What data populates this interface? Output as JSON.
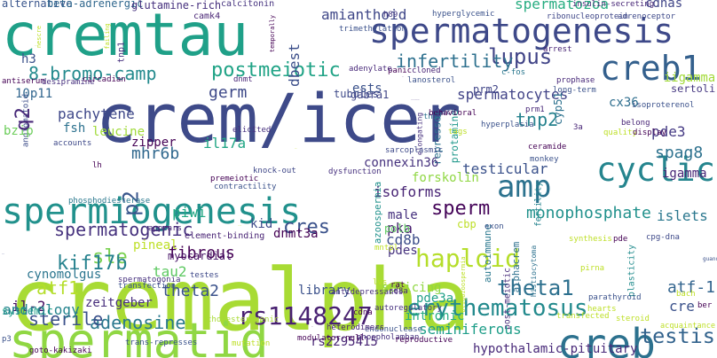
{
  "words": [
    {
      "text": "cremalpha",
      "color": "#a8db34"
    },
    {
      "text": "crem/icer",
      "color": "#3e4a89"
    },
    {
      "text": "cremtau",
      "color": "#1fa088"
    },
    {
      "text": "spermatid",
      "color": "#90d743"
    },
    {
      "text": "spermiogenesis",
      "color": "#21918c"
    },
    {
      "text": "spermatogenesis",
      "color": "#3e4989"
    },
    {
      "text": "creb",
      "color": "#2c718e"
    },
    {
      "text": "creb1",
      "color": "#34608d"
    },
    {
      "text": "cyclic",
      "color": "#25858e"
    },
    {
      "text": "amp",
      "color": "#2c728e"
    },
    {
      "text": "8-bromo-camp",
      "color": "#238a8d"
    },
    {
      "text": "postmeiotic",
      "color": "#20a386"
    },
    {
      "text": "lupus",
      "color": "#414487"
    },
    {
      "text": "infertility",
      "color": "#2d708e"
    },
    {
      "text": "spermatozoa",
      "color": "#27ad81"
    },
    {
      "text": "spermatocytes",
      "color": "#414387"
    },
    {
      "text": "amianthoid",
      "color": "#3f4788"
    },
    {
      "text": "haploid",
      "color": "#b5de2b"
    },
    {
      "text": "theta1",
      "color": "#2d708e"
    },
    {
      "text": "atf-1",
      "color": "#32648e"
    },
    {
      "text": "erythematosus",
      "color": "#238a8d"
    },
    {
      "text": "testis",
      "color": "#33638d"
    },
    {
      "text": "rs1148247",
      "color": "#482071"
    },
    {
      "text": "rs2295415",
      "color": "#482575"
    },
    {
      "text": "adenosine",
      "color": "#2a788e"
    },
    {
      "text": "sterile",
      "color": "#3b518b"
    },
    {
      "text": "spermatogenic",
      "color": "#46327e"
    },
    {
      "text": "sperm",
      "color": "#450559"
    },
    {
      "text": "cres",
      "color": "#3b528b"
    },
    {
      "text": "kid",
      "color": "#3e4c8a"
    },
    {
      "text": "sle",
      "color": "#7ad151"
    },
    {
      "text": "kif17b",
      "color": "#26828e"
    },
    {
      "text": "atf1",
      "color": "#b5de2b"
    },
    {
      "text": "tau2",
      "color": "#5ec962"
    },
    {
      "text": "theta2",
      "color": "#3b528b"
    },
    {
      "text": "il-2",
      "color": "#471063"
    },
    {
      "text": "fibrous",
      "color": "#440154"
    },
    {
      "text": "protamine",
      "color": "#1f988b"
    },
    {
      "text": "repressor",
      "color": "#2c738e"
    },
    {
      "text": "elongating",
      "color": "#46307e"
    },
    {
      "text": "tnp2",
      "color": "#26828e"
    },
    {
      "text": "cyp51",
      "color": "#2c718e"
    },
    {
      "text": "fertility",
      "color": "#25838e"
    },
    {
      "text": "spag8",
      "color": "#2d718e"
    },
    {
      "text": "igamma",
      "color": "#482677"
    },
    {
      "text": "iigamma",
      "color": "#a2da37"
    },
    {
      "text": "pde3",
      "color": "#443983"
    },
    {
      "text": "monophosphate",
      "color": "#21918c"
    },
    {
      "text": "connexin36",
      "color": "#46327e"
    },
    {
      "text": "testicular",
      "color": "#3b528b"
    },
    {
      "text": "isoforms",
      "color": "#482475"
    },
    {
      "text": "forskolin",
      "color": "#90d743"
    },
    {
      "text": "azoospermia",
      "color": "#21918c"
    },
    {
      "text": "histiocytoma",
      "color": "#2c718e"
    },
    {
      "text": "alphacrem",
      "color": "#2d708e"
    },
    {
      "text": "post-meiotic",
      "color": "#472d7b"
    },
    {
      "text": "plasticity",
      "color": "#228c8d"
    },
    {
      "text": "islets",
      "color": "#2a778e"
    },
    {
      "text": "cre",
      "color": "#3b528b"
    },
    {
      "text": "acquaintance",
      "color": "#bddf26"
    },
    {
      "text": "cd8b",
      "color": "#3d4e8a"
    },
    {
      "text": "pde3a",
      "color": "#1fa088"
    },
    {
      "text": "cbp",
      "color": "#bddf26"
    },
    {
      "text": "oligozoospermia",
      "color": "#bddf26"
    },
    {
      "text": "autoimmune",
      "color": "#2a788e"
    },
    {
      "text": "intronic",
      "color": "#25ab82"
    },
    {
      "text": "seminiferous",
      "color": "#1f9e89"
    },
    {
      "text": "hypothalamic-pituitary",
      "color": "#482979"
    },
    {
      "text": "pka",
      "color": "#481f70"
    },
    {
      "text": "male",
      "color": "#46317e"
    },
    {
      "text": "pdes",
      "color": "#46327e"
    },
    {
      "text": "splicing",
      "color": "#90d743"
    },
    {
      "text": "library",
      "color": "#3b518b"
    },
    {
      "text": "pineal",
      "color": "#bddf26"
    },
    {
      "text": "zeitgeber",
      "color": "#472e7c"
    },
    {
      "text": "systemic",
      "color": "#1fa188"
    },
    {
      "text": "andrology",
      "color": "#25848e"
    },
    {
      "text": "cynomolgus",
      "color": "#2b758e"
    },
    {
      "text": "piwi",
      "color": "#22a884"
    },
    {
      "text": "zipper",
      "color": "#440154"
    },
    {
      "text": "mhr6b",
      "color": "#30688e"
    },
    {
      "text": "il17a",
      "color": "#21a685"
    },
    {
      "text": "germ",
      "color": "#3e4989"
    },
    {
      "text": "pachytene",
      "color": "#3f4889"
    },
    {
      "text": "angiomatoid",
      "color": "#3d4d8a"
    },
    {
      "text": "p2",
      "color": "#39568c"
    },
    {
      "text": "bzip",
      "color": "#6ccd5a"
    },
    {
      "text": "leucine",
      "color": "#a0da39"
    },
    {
      "text": "fsh",
      "color": "#2c718e"
    },
    {
      "text": "q2",
      "color": "#482979"
    },
    {
      "text": "10p11",
      "color": "#31668e"
    },
    {
      "text": "h3",
      "color": "#3b528b"
    },
    {
      "text": "camk4",
      "color": "#482475"
    },
    {
      "text": "alternative",
      "color": "#39558c"
    },
    {
      "text": "beta-adrenergic",
      "color": "#31688e"
    },
    {
      "text": "glutamine-rich",
      "color": "#46307e"
    },
    {
      "text": "failure",
      "color": "#440154"
    },
    {
      "text": "dnmt3a",
      "color": "#440154"
    },
    {
      "text": "gabra1",
      "color": "#404588"
    },
    {
      "text": "ests",
      "color": "#3b528b"
    },
    {
      "text": "tubules",
      "color": "#3e4a89"
    },
    {
      "text": "cx36",
      "color": "#2e6e8e"
    },
    {
      "text": "cdnas",
      "color": "#404588"
    },
    {
      "text": "prm2",
      "color": "#404588"
    },
    {
      "text": "sertoli",
      "color": "#453781"
    },
    {
      "text": "dbest",
      "color": "#3c4f8a"
    },
    {
      "text": "tnp1",
      "color": "#46307e"
    },
    {
      "text": "polb",
      "color": "#5ec962"
    },
    {
      "text": "myocardial",
      "color": "#481467"
    },
    {
      "text": "element-binding",
      "color": "#482374"
    },
    {
      "text": "calcitonin",
      "color": "#46337f"
    },
    {
      "text": "h89",
      "color": "#453781"
    },
    {
      "text": "hyperglycemic",
      "color": "#3b528b"
    },
    {
      "text": "insulin-secreting",
      "color": "#482777"
    },
    {
      "text": "arrest",
      "color": "#482475"
    },
    {
      "text": "panic",
      "color": "#440154"
    },
    {
      "text": "cloned",
      "color": "#482576"
    },
    {
      "text": "trimethylation",
      "color": "#3b518b"
    },
    {
      "text": "ribonucleoprotein",
      "color": "#3f4788"
    },
    {
      "text": "adrenoceptor",
      "color": "#3e4989"
    },
    {
      "text": "myxoid",
      "color": "#a8db34"
    },
    {
      "text": "nescre",
      "color": "#bddf26"
    },
    {
      "text": "failing",
      "color": "#bddf26"
    },
    {
      "text": "temporally",
      "color": "#440154"
    },
    {
      "text": "adenylate",
      "color": "#482979"
    },
    {
      "text": "lanosterol",
      "color": "#3b528b"
    },
    {
      "text": "c-fos",
      "color": "#2a778e"
    },
    {
      "text": "prophase",
      "color": "#482979"
    },
    {
      "text": "dnmt",
      "color": "#482576"
    },
    {
      "text": "antiserum",
      "color": "#440154"
    },
    {
      "text": "desipramine",
      "color": "#46307e"
    },
    {
      "text": "circadian",
      "color": "#440154"
    },
    {
      "text": "retrotransposons",
      "color": "#46327e"
    },
    {
      "text": "tax",
      "color": "#482173"
    },
    {
      "text": "lack",
      "color": "#3b528b"
    },
    {
      "text": "th17",
      "color": "#2c728e"
    },
    {
      "text": "behavioral",
      "color": "#440154"
    },
    {
      "text": "anxiety",
      "color": "#46307e"
    },
    {
      "text": "tags",
      "color": "#bddf26"
    },
    {
      "text": "hyperplasia",
      "color": "#3b528b"
    },
    {
      "text": "ceramide",
      "color": "#440154"
    },
    {
      "text": "3a",
      "color": "#482576"
    },
    {
      "text": "quality",
      "color": "#bddf26"
    },
    {
      "text": "prm1",
      "color": "#482979"
    },
    {
      "text": "long-term",
      "color": "#3b528b"
    },
    {
      "text": "belong",
      "color": "#482576"
    },
    {
      "text": "display",
      "color": "#440154"
    },
    {
      "text": "isoproterenol",
      "color": "#3b518b"
    },
    {
      "text": "accounts",
      "color": "#3e4989"
    },
    {
      "text": "lh",
      "color": "#440154"
    },
    {
      "text": "elicited",
      "color": "#46307e"
    },
    {
      "text": "monkey",
      "color": "#3b528b"
    },
    {
      "text": "sarcoplasmic",
      "color": "#3e4989"
    },
    {
      "text": "awsri",
      "color": "#bddf26"
    },
    {
      "text": "knock-out",
      "color": "#3f4788"
    },
    {
      "text": "dysfunction",
      "color": "#46307e"
    },
    {
      "text": "contractility",
      "color": "#3b528b"
    },
    {
      "text": "premeiotic",
      "color": "#440154"
    },
    {
      "text": "phosphodiesterase",
      "color": "#2a788e"
    },
    {
      "text": "alpha",
      "color": "#3e4989"
    },
    {
      "text": "appears",
      "color": "#482475"
    },
    {
      "text": "cyclase",
      "color": "#bddf26"
    },
    {
      "text": "synthesis",
      "color": "#bddf26"
    },
    {
      "text": "pde",
      "color": "#440154"
    },
    {
      "text": "guanosine",
      "color": "#3b518b"
    },
    {
      "text": "cpg-dna",
      "color": "#3e4989"
    },
    {
      "text": "exon",
      "color": "#3b528b"
    },
    {
      "text": "cd8a",
      "color": "#482576"
    },
    {
      "text": "lvs",
      "color": "#bddf26"
    },
    {
      "text": "rat",
      "color": "#440154"
    },
    {
      "text": "transfection",
      "color": "#3b528b"
    },
    {
      "text": "spermatogonia",
      "color": "#46307e"
    },
    {
      "text": "testes",
      "color": "#3e4989"
    },
    {
      "text": "cholesterogenic",
      "color": "#a8db34"
    },
    {
      "text": "cd4",
      "color": "#440154"
    },
    {
      "text": "autoregulatory",
      "color": "#46307e"
    },
    {
      "text": "hormone",
      "color": "#bddf26"
    },
    {
      "text": "cdna",
      "color": "#440154"
    },
    {
      "text": "phospholamban",
      "color": "#46307e"
    },
    {
      "text": "endonuclease",
      "color": "#3b528b"
    },
    {
      "text": "reproductive",
      "color": "#440154"
    },
    {
      "text": "heterodimers",
      "color": "#482576"
    },
    {
      "text": "antidepressants",
      "color": "#46307e"
    },
    {
      "text": "inducible",
      "color": "#440154"
    },
    {
      "text": "parathyroid",
      "color": "#3b528b"
    },
    {
      "text": "hearts",
      "color": "#bddf26"
    },
    {
      "text": "modulator-null",
      "color": "#440154"
    },
    {
      "text": "trans-represses",
      "color": "#3b528b"
    },
    {
      "text": "goto-kakizaki",
      "color": "#440154"
    },
    {
      "text": "p3",
      "color": "#3b528b"
    },
    {
      "text": "mutation",
      "color": "#bddf26"
    },
    {
      "text": "pirna",
      "color": "#bddf26"
    },
    {
      "text": "ber",
      "color": "#440154"
    },
    {
      "text": "mntpl",
      "color": "#bddf26"
    },
    {
      "text": "steroid",
      "color": "#bddf26"
    },
    {
      "text": "transfected",
      "color": "#bddf26"
    },
    {
      "text": "bach",
      "color": "#bddf26"
    }
  ]
}
